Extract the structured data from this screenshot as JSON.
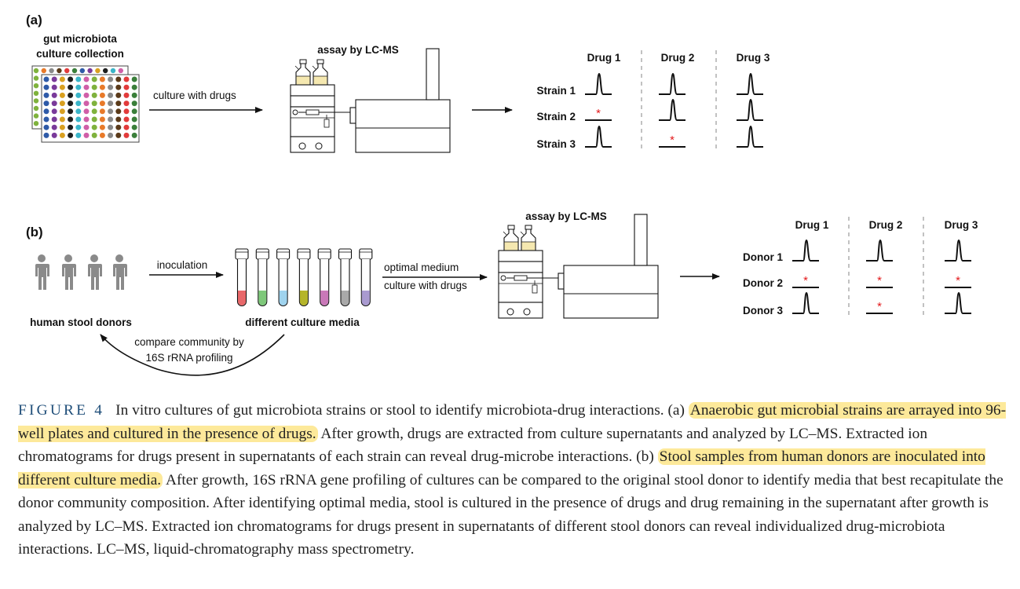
{
  "panel_a": {
    "label": "(a)",
    "plate_title_line1": "gut microbiota",
    "plate_title_line2": "culture collection",
    "arrow1_label": "culture with drugs",
    "assay_label": "assay by LC-MS",
    "drug_headers": [
      "Drug 1",
      "Drug 2",
      "Drug 3"
    ],
    "row_labels": [
      "Strain 1",
      "Strain 2",
      "Strain 3"
    ],
    "marker": "*"
  },
  "panel_b": {
    "label": "(b)",
    "arrow1_label": "inoculation",
    "donors_label": "human stool donors",
    "media_label": "different culture media",
    "arrow2_label_line1": "optimal medium",
    "arrow2_label_line2": "culture with drugs",
    "assay_label": "assay by LC-MS",
    "loop_label_line1": "compare community by",
    "loop_label_line2": "16S rRNA profiling",
    "drug_headers": [
      "Drug 1",
      "Drug 2",
      "Drug 3"
    ],
    "row_labels": [
      "Donor 1",
      "Donor 2",
      "Donor 3"
    ],
    "marker": "*"
  },
  "caption": {
    "figure_label": "FIGURE 4",
    "part1": "In vitro cultures of gut microbiota strains or stool to identify microbiota-drug interactions. (a) ",
    "highlight1": "Anaerobic gut microbial strains are arrayed into 96-well plates and cultured in the presence of drugs.",
    "part2": " After growth, drugs are extracted from culture supernatants and analyzed by LC–MS. Extracted ion chromatograms for drugs present in supernatants of each strain can reveal drug-microbe interactions. (b) ",
    "highlight2": "Stool samples from human donors are inoculated into different culture media.",
    "part3": " After growth, 16S rRNA gene profiling of cultures can be compared to the original stool donor to identify media that best recapitulate the donor community composition. After identifying optimal media, stool is cultured in the presence of drugs and drug remaining in the supernatant after growth is analyzed by LC–MS. Extracted ion chromatograms for drugs present in supernatants of different stool donors can reveal individualized drug-microbiota interactions. LC–MS, liquid-chromatography mass spectrometry."
  },
  "colors": {
    "marker": "#e31a1c",
    "highlight": "#fde99a",
    "figure_label": "#1f4e79",
    "tube_liquids": [
      "#e8686a",
      "#7ec87a",
      "#9fd3ee",
      "#b5b52a",
      "#c978b8",
      "#a9a9a9",
      "#a99ad0"
    ],
    "plate_wells": [
      "#e23b3b",
      "#3a7f3a",
      "#2e5aa8",
      "#7a3a9a",
      "#d9a021",
      "#1d1d1d",
      "#3bb5c9",
      "#d05fa8",
      "#7fb23d",
      "#e87a2a",
      "#8a8a8a",
      "#5b3b1b"
    ]
  },
  "icons": {
    "donor_icon": "person-silhouette-icon",
    "tube_icon": "test-tube-icon",
    "instrument_icon": "lc-ms-instrument-icon",
    "plate_icon": "well-plate-icon",
    "peak_icon": "chromatogram-peak-icon"
  }
}
